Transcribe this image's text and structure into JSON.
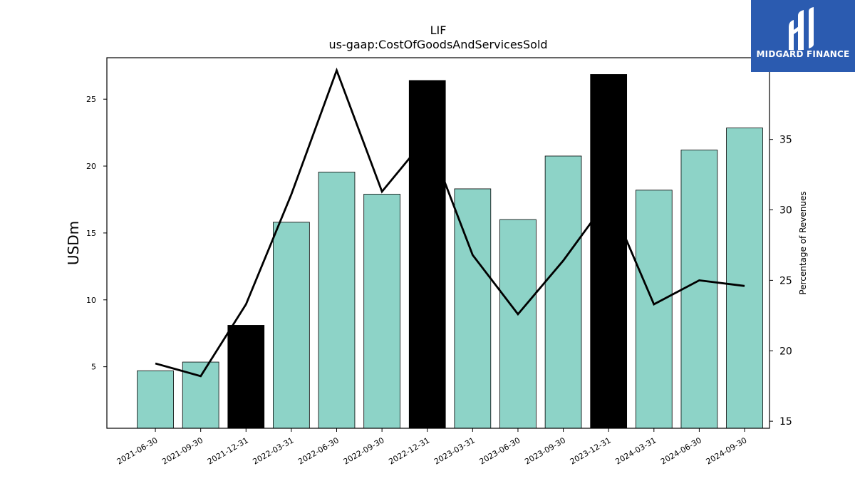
{
  "chart_data": {
    "type": "bar",
    "title": "LIF",
    "subtitle": "us-gaap:CostOfGoodsAndServicesSold",
    "ylabel": "USDm",
    "y2label": "Percentage of Revenues",
    "categories": [
      "2021-06-30",
      "2021-09-30",
      "2021-12-31",
      "2022-03-31",
      "2022-06-30",
      "2022-09-30",
      "2022-12-31",
      "2023-03-31",
      "2023-06-30",
      "2023-09-30",
      "2023-12-31",
      "2024-03-31",
      "2024-06-30",
      "2024-09-30"
    ],
    "series": [
      {
        "type": "bar",
        "axis": "left",
        "values": [
          4.7,
          5.35,
          8.1,
          15.8,
          19.55,
          17.9,
          26.4,
          18.3,
          16.0,
          20.75,
          26.85,
          18.2,
          21.2,
          22.85
        ],
        "colors": [
          "#8dd3c7",
          "#8dd3c7",
          "#000000",
          "#8dd3c7",
          "#8dd3c7",
          "#8dd3c7",
          "#000000",
          "#8dd3c7",
          "#8dd3c7",
          "#8dd3c7",
          "#000000",
          "#8dd3c7",
          "#8dd3c7",
          "#8dd3c7"
        ]
      },
      {
        "type": "line",
        "axis": "right",
        "values": [
          19.1,
          18.2,
          23.3,
          31.1,
          39.9,
          31.3,
          35.2,
          26.8,
          22.6,
          26.4,
          30.8,
          23.3,
          25.0,
          24.6
        ],
        "color": "#000000"
      }
    ],
    "ylim": [
      0.4,
      28.1
    ],
    "y2lim": [
      14.5,
      40.8
    ],
    "yticks": [
      5,
      10,
      15,
      20,
      25
    ],
    "y2ticks": [
      15,
      20,
      25,
      30,
      35
    ],
    "grid": false
  },
  "logo": {
    "text": "MIDGARD FINANCE",
    "color": "#2b5bb0"
  }
}
